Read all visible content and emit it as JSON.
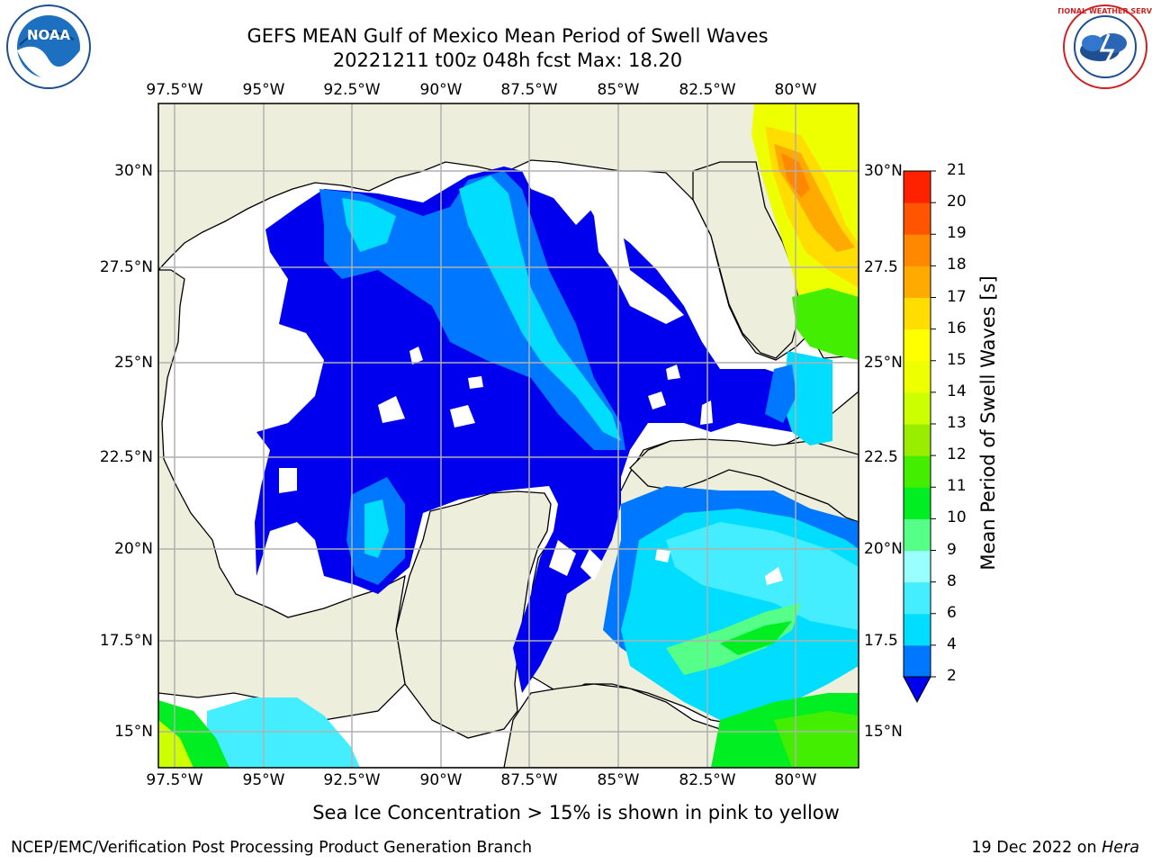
{
  "header": {
    "title_line1": "GEFS MEAN Gulf of Mexico Mean Period of Swell Waves",
    "title_line2": "20221211 t00z 048h fcst   Max: 18.20"
  },
  "logos": {
    "left": {
      "text": "NOAA",
      "ring_text": "NATIONAL OCEANIC AND ATMOSPHERIC ADMINISTRATION · U.S. DEPARTMENT OF COMMERCE"
    },
    "right": {
      "ring_text": "NATIONAL WEATHER SERVICE"
    }
  },
  "map": {
    "lon_labels": [
      "97.5°W",
      "95°W",
      "92.5°W",
      "90°W",
      "87.5°W",
      "85°W",
      "82.5°W",
      "80°W"
    ],
    "lat_labels_left": [
      "30°N",
      "27.5°N",
      "25°N",
      "22.5°N",
      "20°N",
      "17.5°N",
      "15°N"
    ],
    "lat_labels_right": [
      "30°N",
      "27.5",
      "25°N",
      "22.5",
      "20°N",
      "17.5",
      "15°N"
    ],
    "colors": {
      "land": "#eeeedd",
      "water_no_data": "#ffffff",
      "grid": "#b0b0b0",
      "coast": "#000000"
    }
  },
  "colorbar": {
    "label": "Mean Period of Swell Waves [s]",
    "tick_labels": [
      "21",
      "20",
      "19",
      "18",
      "17",
      "16",
      "15",
      "14",
      "13",
      "12",
      "11",
      "10",
      "9",
      "8",
      "6",
      "4",
      "2"
    ],
    "colors": [
      "#0000ee",
      "#0077ff",
      "#00ddff",
      "#44eeff",
      "#99ffff",
      "#55ff88",
      "#00ee22",
      "#44ee00",
      "#99ee00",
      "#ccff00",
      "#eeff00",
      "#ffff00",
      "#ffdd00",
      "#ffaa00",
      "#ff8800",
      "#ff5500",
      "#ff2200",
      "#ff0000"
    ]
  },
  "footer": {
    "note": "Sea Ice Concentration > 15% is shown in pink to yellow",
    "left": "NCEP/EMC/Verification Post Processing Product Generation Branch",
    "right_date": "19 Dec 2022 on ",
    "right_machine": "Hera"
  }
}
